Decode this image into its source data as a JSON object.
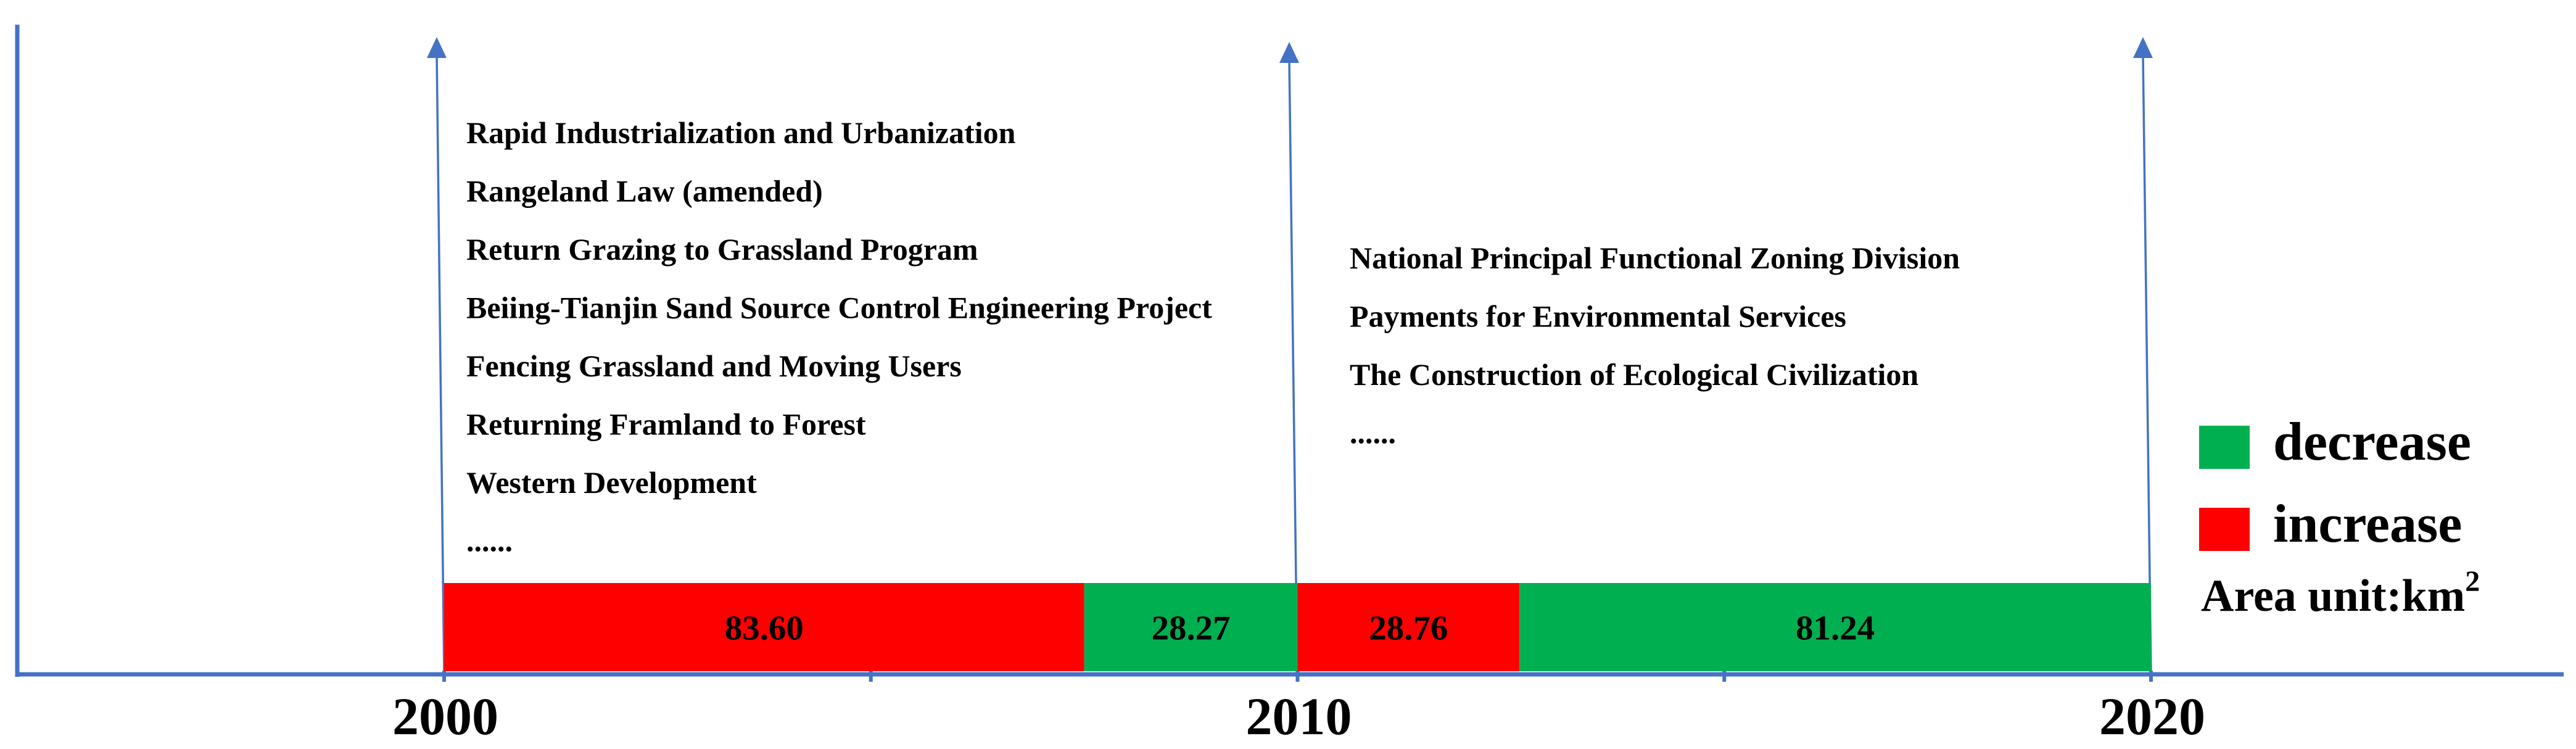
{
  "chart_data": {
    "type": "bar",
    "title": "",
    "xlabel": "",
    "ylabel": "",
    "x_ticks": [
      "2000",
      "2010",
      "2020"
    ],
    "xlim": [
      1995,
      2025
    ],
    "segments": [
      {
        "start": 2000,
        "end": 2007.5,
        "value": 83.6,
        "label": "83.60",
        "category": "increase"
      },
      {
        "start": 2007.5,
        "end": 2010,
        "value": 28.27,
        "label": "28.27",
        "category": "decrease"
      },
      {
        "start": 2010,
        "end": 2012.6,
        "value": 28.76,
        "label": "28.76",
        "category": "increase"
      },
      {
        "start": 2012.6,
        "end": 2020,
        "value": 81.24,
        "label": "81.24",
        "category": "decrease"
      }
    ],
    "legend": [
      {
        "name": "decrease",
        "color": "#00b050"
      },
      {
        "name": "increase",
        "color": "#ff0000"
      }
    ],
    "unit_label": "Area unit:km",
    "unit_superscript": "2",
    "policy_periods": [
      {
        "period": "2000-2010",
        "items": [
          "Rapid Industrialization and  Urbanization",
          "Rangeland Law (amended)",
          "Return Grazing to Grassland Program",
          "Beiing-Tianjin Sand Source Control Engineering Project",
          "Fencing Grassland and Moving Users",
          "Returning Framland to Forest",
          "Western Development",
          "......"
        ]
      },
      {
        "period": "2010-2020",
        "items": [
          "National  Principal Functional Zoning Division",
          "Payments for Environmental Services",
          "The Construction of Ecological Civilization",
          "......"
        ]
      }
    ]
  },
  "colors": {
    "axis": "#4472c4",
    "increase": "#ff0000",
    "decrease": "#00b050",
    "text": "#000000"
  }
}
